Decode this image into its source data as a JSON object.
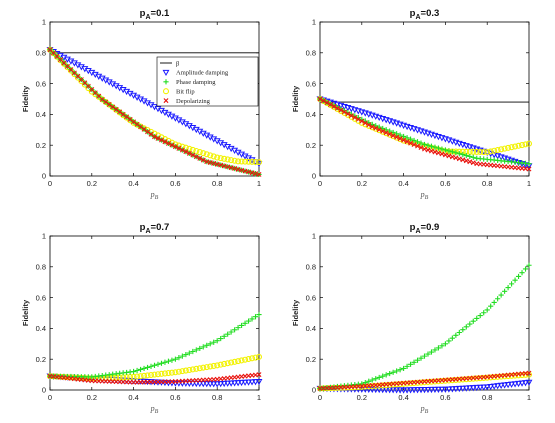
{
  "chart_data": {
    "type": "scatter",
    "xlabel": "p_B",
    "ylabel": "Fidelity",
    "xlim": [
      0,
      1
    ],
    "ylim": [
      0,
      1
    ],
    "xticks": [
      "0",
      "0.2",
      "0.4",
      "0.6",
      "0.8",
      "1"
    ],
    "yticks": [
      "0",
      "0.2",
      "0.4",
      "0.6",
      "0.8",
      "1"
    ],
    "grid": false,
    "legend_location": "top-right of first panel",
    "legend": [
      {
        "name": "β",
        "marker": "line",
        "color": "#000000"
      },
      {
        "name": "Amplitude damping",
        "marker": "triangle-down",
        "color": "#1a1aff"
      },
      {
        "name": "Phase damping",
        "marker": "plus",
        "color": "#22dd22"
      },
      {
        "name": "Bit flip",
        "marker": "circle",
        "color": "#f2f200"
      },
      {
        "name": "Depolarizing",
        "marker": "x",
        "color": "#e8140f"
      }
    ],
    "panels": [
      {
        "title_main": "p",
        "title_sub": "A",
        "title_rest": "=0.1",
        "beta": 0.8,
        "series": {
          "Amplitude damping": {
            "x": [
              0,
              0.25,
              0.5,
              0.75,
              1
            ],
            "y": [
              0.82,
              0.635,
              0.45,
              0.265,
              0.08
            ]
          },
          "Phase damping": {
            "x": [
              0,
              0.25,
              0.5,
              0.75,
              1
            ],
            "y": [
              0.82,
              0.497,
              0.255,
              0.093,
              0.01
            ]
          },
          "Bit flip": {
            "x": [
              0,
              0.2,
              0.4,
              0.6,
              0.8,
              0.9,
              1
            ],
            "y": [
              0.82,
              0.548,
              0.345,
              0.205,
              0.12,
              0.095,
              0.09
            ]
          },
          "Depolarizing": {
            "x": [
              0,
              0.25,
              0.5,
              0.75,
              1
            ],
            "y": [
              0.82,
              0.497,
              0.255,
              0.093,
              0.01
            ]
          }
        }
      },
      {
        "title_main": "p",
        "title_sub": "A",
        "title_rest": "=0.3",
        "beta": 0.48,
        "series": {
          "Amplitude damping": {
            "x": [
              0,
              0.25,
              0.5,
              0.75,
              1
            ],
            "y": [
              0.5,
              0.395,
              0.285,
              0.175,
              0.065
            ]
          },
          "Phase damping": {
            "x": [
              0,
              0.25,
              0.5,
              0.75,
              1
            ],
            "y": [
              0.5,
              0.335,
              0.205,
              0.115,
              0.08
            ]
          },
          "Bit flip": {
            "x": [
              0,
              0.2,
              0.4,
              0.6,
              0.8,
              1
            ],
            "y": [
              0.5,
              0.345,
              0.23,
              0.16,
              0.155,
              0.21
            ]
          },
          "Depolarizing": {
            "x": [
              0,
              0.25,
              0.5,
              0.75,
              1
            ],
            "y": [
              0.5,
              0.32,
              0.175,
              0.08,
              0.045
            ]
          }
        }
      },
      {
        "title_main": "p",
        "title_sub": "A",
        "title_rest": "=0.7",
        "beta": null,
        "series": {
          "Amplitude damping": {
            "x": [
              0,
              0.2,
              0.4,
              0.6,
              0.8,
              1
            ],
            "y": [
              0.09,
              0.075,
              0.06,
              0.045,
              0.04,
              0.055
            ]
          },
          "Phase damping": {
            "x": [
              0,
              0.2,
              0.4,
              0.6,
              0.8,
              1
            ],
            "y": [
              0.09,
              0.085,
              0.12,
              0.2,
              0.32,
              0.49
            ]
          },
          "Bit flip": {
            "x": [
              0,
              0.2,
              0.4,
              0.6,
              0.8,
              1
            ],
            "y": [
              0.09,
              0.075,
              0.085,
              0.115,
              0.16,
              0.215
            ]
          },
          "Depolarizing": {
            "x": [
              0,
              0.2,
              0.4,
              0.6,
              0.8,
              1
            ],
            "y": [
              0.09,
              0.06,
              0.05,
              0.055,
              0.07,
              0.1
            ]
          }
        }
      },
      {
        "title_main": "p",
        "title_sub": "A",
        "title_rest": "=0.9",
        "beta": null,
        "series": {
          "Amplitude damping": {
            "x": [
              0,
              0.2,
              0.4,
              0.6,
              0.8,
              1
            ],
            "y": [
              0.01,
              0.005,
              0.0,
              0.005,
              0.02,
              0.05
            ]
          },
          "Phase damping": {
            "x": [
              0,
              0.2,
              0.4,
              0.6,
              0.8,
              1
            ],
            "y": [
              0.01,
              0.04,
              0.14,
              0.3,
              0.52,
              0.81
            ]
          },
          "Bit flip": {
            "x": [
              0,
              0.2,
              0.4,
              0.6,
              0.8,
              1
            ],
            "y": [
              0.01,
              0.02,
              0.04,
              0.06,
              0.08,
              0.1
            ]
          },
          "Depolarizing": {
            "x": [
              0,
              0.2,
              0.4,
              0.6,
              0.8,
              1
            ],
            "y": [
              0.01,
              0.025,
              0.045,
              0.065,
              0.085,
              0.11
            ]
          }
        }
      }
    ]
  }
}
